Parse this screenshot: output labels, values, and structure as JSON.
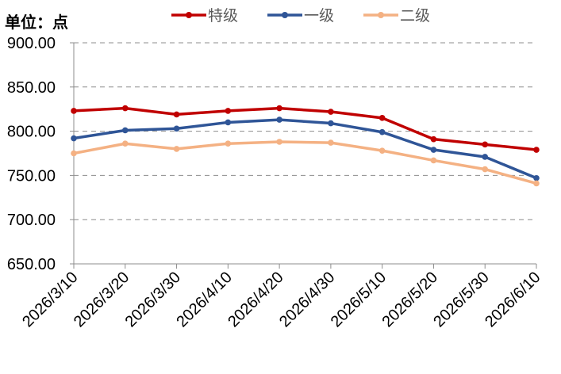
{
  "chart_data": {
    "type": "line",
    "unit_label": "单位：点",
    "ylim": [
      650,
      900
    ],
    "yticks": [
      "650.00",
      "700.00",
      "750.00",
      "800.00",
      "850.00",
      "900.00"
    ],
    "ytick_values": [
      650,
      700,
      750,
      800,
      850,
      900
    ],
    "categories": [
      "2026/3/10",
      "2026/3/20",
      "2026/3/30",
      "2026/4/10",
      "2026/4/20",
      "2026/4/30",
      "2026/5/10",
      "2026/5/20",
      "2026/5/30",
      "2026/6/10"
    ],
    "grid": "horizontal dashed",
    "legend_position": "top",
    "series": [
      {
        "name": "特级",
        "color": "#C00000",
        "values": [
          823,
          826,
          819,
          823,
          826,
          822,
          815,
          791,
          785,
          779
        ]
      },
      {
        "name": "一级",
        "color": "#2F5597",
        "values": [
          792,
          801,
          803,
          810,
          813,
          809,
          799,
          779,
          771,
          747
        ]
      },
      {
        "name": "二级",
        "color": "#F4B183",
        "values": [
          775,
          786,
          780,
          786,
          788,
          787,
          778,
          767,
          757,
          741
        ]
      }
    ]
  }
}
